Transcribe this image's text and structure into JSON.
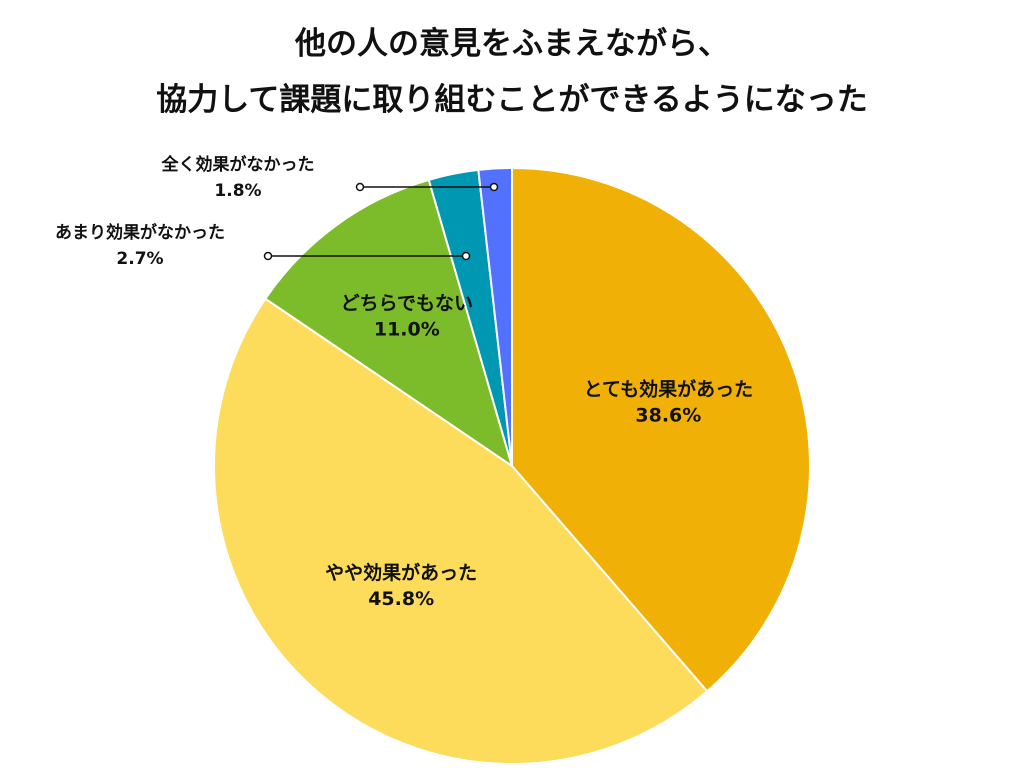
{
  "title": {
    "line1": "他の人の意見をふまえながら、",
    "line2": "協力して課題に取り組むことができるようになった"
  },
  "chart_data": {
    "type": "pie",
    "title": "他の人の意見をふまえながら、協力して課題に取り組むことができるようになった",
    "slices": [
      {
        "label": "とても効果があった",
        "value": 38.6,
        "value_label": "38.6%",
        "color": "#F0B005"
      },
      {
        "label": "やや効果があった",
        "value": 45.8,
        "value_label": "45.8%",
        "color": "#FDDC5C"
      },
      {
        "label": "どちらでもない",
        "value": 11.0,
        "value_label": "11.0%",
        "color": "#7CBC2A"
      },
      {
        "label": "あまり効果がなかった",
        "value": 2.7,
        "value_label": "2.7%",
        "color": "#0097B2"
      },
      {
        "label": "全く効果がなかった",
        "value": 1.8,
        "value_label": "1.8%",
        "color": "#5271FF"
      }
    ],
    "start_angle": "12 o'clock",
    "direction": "clockwise",
    "legend": "none"
  }
}
